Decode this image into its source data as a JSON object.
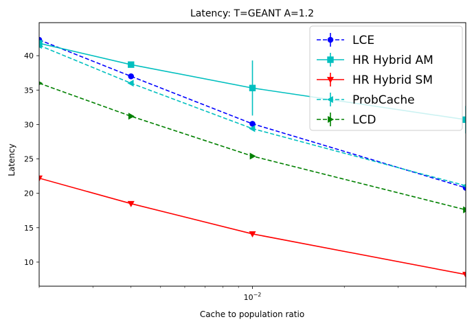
{
  "chart_data": {
    "type": "line",
    "title": "Latency: T=GEANT A=1.2",
    "xlabel": "Cache to population ratio",
    "ylabel": "Latency",
    "xscale": "log",
    "xlim": [
      0.002,
      0.05
    ],
    "ylim": [
      6.5,
      44.8
    ],
    "x": [
      0.002,
      0.004,
      0.01,
      0.05
    ],
    "x_tick_labels": [
      {
        "value": 0.01,
        "base": "10",
        "exp": "−2"
      }
    ],
    "y_ticks": [
      10,
      15,
      20,
      25,
      30,
      35,
      40
    ],
    "grid": false,
    "legend_position": "top-right",
    "series": [
      {
        "name": "LCE",
        "color": "#0000ff",
        "dash": true,
        "marker": "circle",
        "values": [
          42.3,
          37.0,
          30.1,
          20.8
        ],
        "err": [
          0,
          0,
          0,
          0
        ]
      },
      {
        "name": "HR Hybrid AM",
        "color": "#00bfbf",
        "dash": false,
        "marker": "square",
        "values": [
          41.8,
          38.7,
          35.3,
          30.7
        ],
        "err": [
          0,
          0,
          4.0,
          2.0
        ]
      },
      {
        "name": "HR Hybrid SM",
        "color": "#ff0000",
        "dash": false,
        "marker": "triangle-down",
        "values": [
          22.2,
          18.5,
          14.1,
          8.2
        ],
        "err": [
          0,
          0,
          0,
          0
        ]
      },
      {
        "name": "ProbCache",
        "color": "#00bfbf",
        "dash": true,
        "marker": "triangle-left",
        "values": [
          41.5,
          36.0,
          29.4,
          21.1
        ],
        "err": [
          0,
          0,
          0,
          0
        ]
      },
      {
        "name": "LCD",
        "color": "#008000",
        "dash": true,
        "marker": "triangle-right",
        "values": [
          36.0,
          31.2,
          25.4,
          17.6
        ],
        "err": [
          0,
          0,
          0,
          0
        ]
      }
    ]
  }
}
